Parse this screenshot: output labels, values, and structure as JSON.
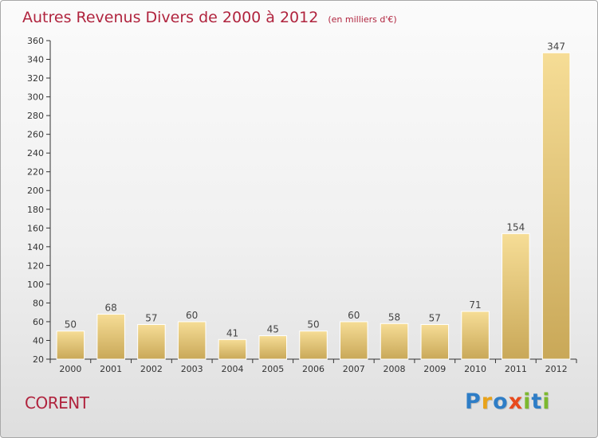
{
  "page": {
    "place_name": "CORENT",
    "logo": [
      {
        "char": "P",
        "color": "#2e7dc6"
      },
      {
        "char": "r",
        "color": "#e8a21a"
      },
      {
        "char": "o",
        "color": "#2e7dc6"
      },
      {
        "char": "x",
        "color": "#e84a1c"
      },
      {
        "char": "i",
        "color": "#7cb82f"
      },
      {
        "char": "t",
        "color": "#2e7dc6"
      },
      {
        "char": "i",
        "color": "#7cb82f"
      }
    ]
  },
  "chart_data": {
    "type": "bar",
    "title": "Autres Revenus Divers de 2000 à 2012",
    "subtitle": "(en milliers d'€)",
    "categories": [
      "2000",
      "2001",
      "2002",
      "2003",
      "2004",
      "2005",
      "2006",
      "2007",
      "2008",
      "2009",
      "2010",
      "2011",
      "2012"
    ],
    "values": [
      50,
      68,
      57,
      60,
      41,
      45,
      50,
      60,
      58,
      57,
      71,
      154,
      347
    ],
    "ylim": [
      20,
      360
    ],
    "yticks": [
      20,
      40,
      60,
      80,
      100,
      120,
      140,
      160,
      180,
      200,
      220,
      240,
      260,
      280,
      300,
      320,
      340,
      360
    ],
    "xlabel": "",
    "ylabel": "",
    "grid": false,
    "colors": {
      "bar_light": "#f6dd96",
      "bar_dark": "#c9a858",
      "axis": "#333333",
      "title": "#b0243e"
    }
  }
}
